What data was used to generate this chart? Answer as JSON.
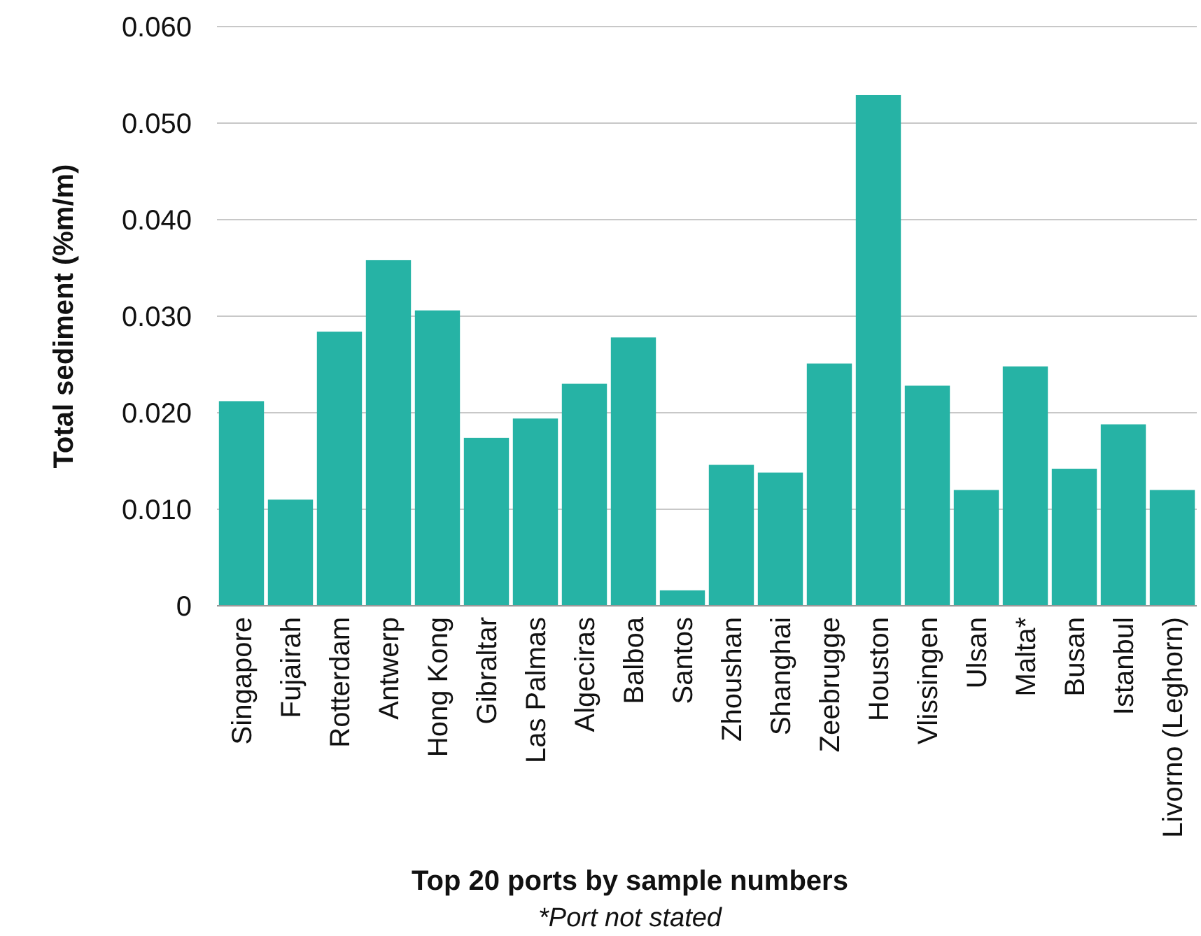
{
  "chart_data": {
    "type": "bar",
    "xlabel": "Top 20 ports by sample numbers",
    "ylabel": "Total sediment (%m/m)",
    "annotations": [
      "*Port not stated"
    ],
    "categories": [
      "Singapore",
      "Fujairah",
      "Rotterdam",
      "Antwerp",
      "Hong Kong",
      "Gibraltar",
      "Las Palmas",
      "Algeciras",
      "Balboa",
      "Santos",
      "Zhoushan",
      "Shanghai",
      "Zeebrugge",
      "Houston",
      "Vlissingen",
      "Ulsan",
      "Malta*",
      "Busan",
      "Istanbul",
      "Livorno (Leghorn)"
    ],
    "values": [
      0.0212,
      0.011,
      0.0284,
      0.0358,
      0.0306,
      0.0174,
      0.0194,
      0.023,
      0.0278,
      0.0016,
      0.0146,
      0.0138,
      0.0251,
      0.0529,
      0.0228,
      0.012,
      0.0248,
      0.0142,
      0.0188,
      0.012
    ],
    "color": "#26b3a5",
    "ylim": [
      0,
      0.06
    ],
    "yticks": [
      {
        "value": 0,
        "label": "0"
      },
      {
        "value": 0.01,
        "label": "0.010"
      },
      {
        "value": 0.02,
        "label": "0.020"
      },
      {
        "value": 0.03,
        "label": "0.030"
      },
      {
        "value": 0.04,
        "label": "0.040"
      },
      {
        "value": 0.05,
        "label": "0.050"
      },
      {
        "value": 0.06,
        "label": "0.060"
      }
    ],
    "grid": "y"
  }
}
